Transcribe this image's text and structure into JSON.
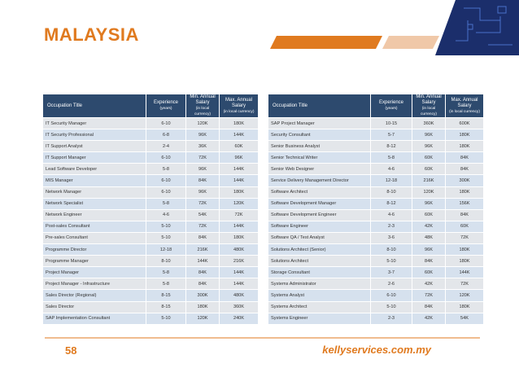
{
  "header": {
    "title": "MALAYSIA"
  },
  "tables": [
    {
      "columns": [
        {
          "label": "Occupation Title"
        },
        {
          "label": "Experience",
          "note": "(years)"
        },
        {
          "label": "Min. Annual Salary",
          "note": "(in local currency)"
        },
        {
          "label": "Max. Annual Salary",
          "note": "(in local currency)"
        }
      ],
      "rows": [
        [
          "IT Security Manager",
          "6-10",
          "120K",
          "180K"
        ],
        [
          "IT Security Professional",
          "6-8",
          "96K",
          "144K"
        ],
        [
          "IT Support Analyst",
          "2-4",
          "36K",
          "60K"
        ],
        [
          "IT Support Manager",
          "6-10",
          "72K",
          "96K"
        ],
        [
          "Lead Software Developer",
          "5-8",
          "96K",
          "144K"
        ],
        [
          "MIS Manager",
          "6-10",
          "84K",
          "144K"
        ],
        [
          "Network Manager",
          "6-10",
          "96K",
          "180K"
        ],
        [
          "Network Specialist",
          "5-8",
          "72K",
          "120K"
        ],
        [
          "Network Engineer",
          "4-6",
          "54K",
          "72K"
        ],
        [
          "Post-sales Consultant",
          "5-10",
          "72K",
          "144K"
        ],
        [
          "Pre-sales Consultant",
          "5-10",
          "84K",
          "180K"
        ],
        [
          "Programme Director",
          "12-18",
          "216K",
          "480K"
        ],
        [
          "Programme Manager",
          "8-10",
          "144K",
          "216K"
        ],
        [
          "Project Manager",
          "5-8",
          "84K",
          "144K"
        ],
        [
          "Project Manager - Infrastructure",
          "5-8",
          "84K",
          "144K"
        ],
        [
          "Sales Director (Regional)",
          "8-15",
          "300K",
          "480K"
        ],
        [
          "Sales Director",
          "8-15",
          "180K",
          "360K"
        ],
        [
          "SAP Implementation Consultant",
          "5-10",
          "120K",
          "240K"
        ]
      ]
    },
    {
      "columns": [
        {
          "label": "Occupation Title"
        },
        {
          "label": "Experience",
          "note": "(years)"
        },
        {
          "label": "Min. Annual Salary",
          "note": "(in local currency)"
        },
        {
          "label": "Max. Annual Salary",
          "note": "(in local currency)"
        }
      ],
      "rows": [
        [
          "SAP Project Manager",
          "10-15",
          "360K",
          "600K"
        ],
        [
          "Security Consultant",
          "5-7",
          "96K",
          "180K"
        ],
        [
          "Senior Business Analyst",
          "8-12",
          "96K",
          "180K"
        ],
        [
          "Senior Technical Writer",
          "5-8",
          "60K",
          "84K"
        ],
        [
          "Senior Web Designer",
          "4-6",
          "60K",
          "84K"
        ],
        [
          "Service Delivery Management Director",
          "12-18",
          "216K",
          "300K"
        ],
        [
          "Software Architect",
          "8-10",
          "120K",
          "180K"
        ],
        [
          "Software Development Manager",
          "8-12",
          "96K",
          "156K"
        ],
        [
          "Software Development Engineer",
          "4-6",
          "60K",
          "84K"
        ],
        [
          "Software Engineer",
          "2-3",
          "42K",
          "60K"
        ],
        [
          "Software QA / Test Analyst",
          "3-6",
          "48K",
          "72K"
        ],
        [
          "Solutions Architect (Senior)",
          "8-10",
          "96K",
          "180K"
        ],
        [
          "Solutions Architect",
          "5-10",
          "84K",
          "180K"
        ],
        [
          "Storage Consultant",
          "3-7",
          "60K",
          "144K"
        ],
        [
          "Systems Administrator",
          "2-6",
          "42K",
          "72K"
        ],
        [
          "Systems Analyst",
          "6-10",
          "72K",
          "120K"
        ],
        [
          "Systems Architect",
          "5-10",
          "84K",
          "180K"
        ],
        [
          "Systems Engineer",
          "2-3",
          "42K",
          "54K"
        ]
      ]
    }
  ],
  "footer": {
    "page": "58",
    "website": "kellyservices.com.my"
  }
}
